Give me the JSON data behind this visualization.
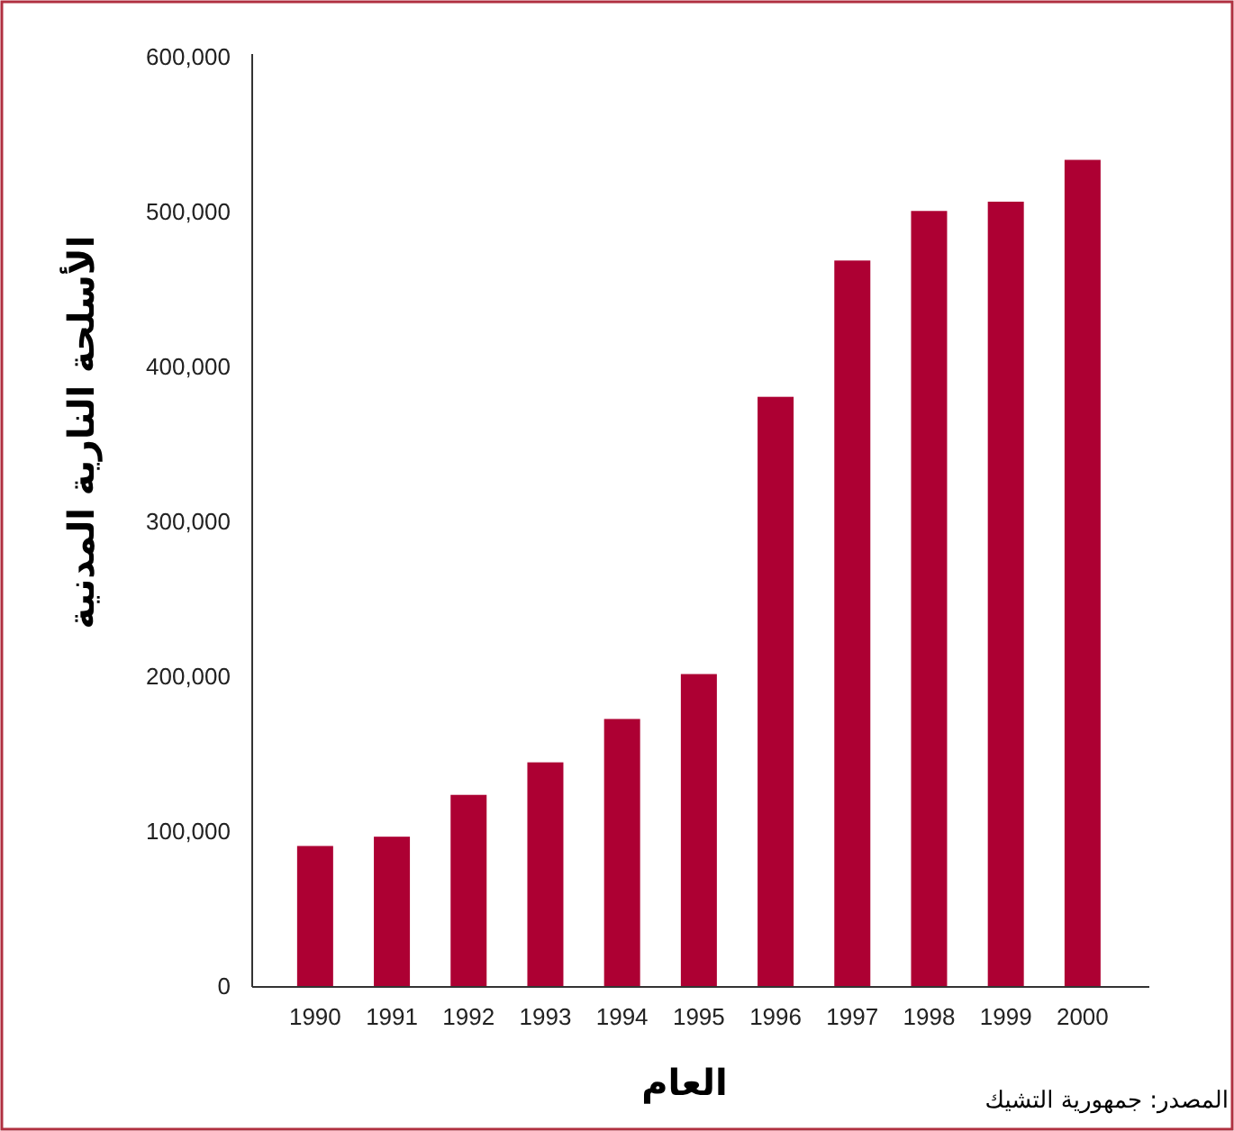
{
  "chart_data": {
    "type": "bar",
    "xlabel": "العام",
    "ylabel": "الأسلحة النارية المدنية",
    "annotations": [
      "المصدر: جمهورية التشيك"
    ],
    "categories": [
      "1990",
      "1991",
      "1992",
      "1993",
      "1994",
      "1995",
      "1996",
      "1997",
      "1998",
      "1999",
      "2000"
    ],
    "values": [
      91000,
      97000,
      124000,
      145000,
      173000,
      202000,
      381000,
      469000,
      501000,
      507000,
      534000
    ],
    "color": "#ad0033",
    "ylim": [
      0,
      600000
    ],
    "yticks": [
      0,
      {
        "value": 100000,
        "label": "100,000"
      },
      {
        "value": 200000,
        "label": "200,000"
      },
      {
        "value": 300000,
        "label": "300,000"
      },
      {
        "value": 400000,
        "label": "400,000"
      },
      {
        "value": 500000,
        "label": "500,000"
      },
      {
        "value": 600000,
        "label": "600,000"
      }
    ]
  }
}
